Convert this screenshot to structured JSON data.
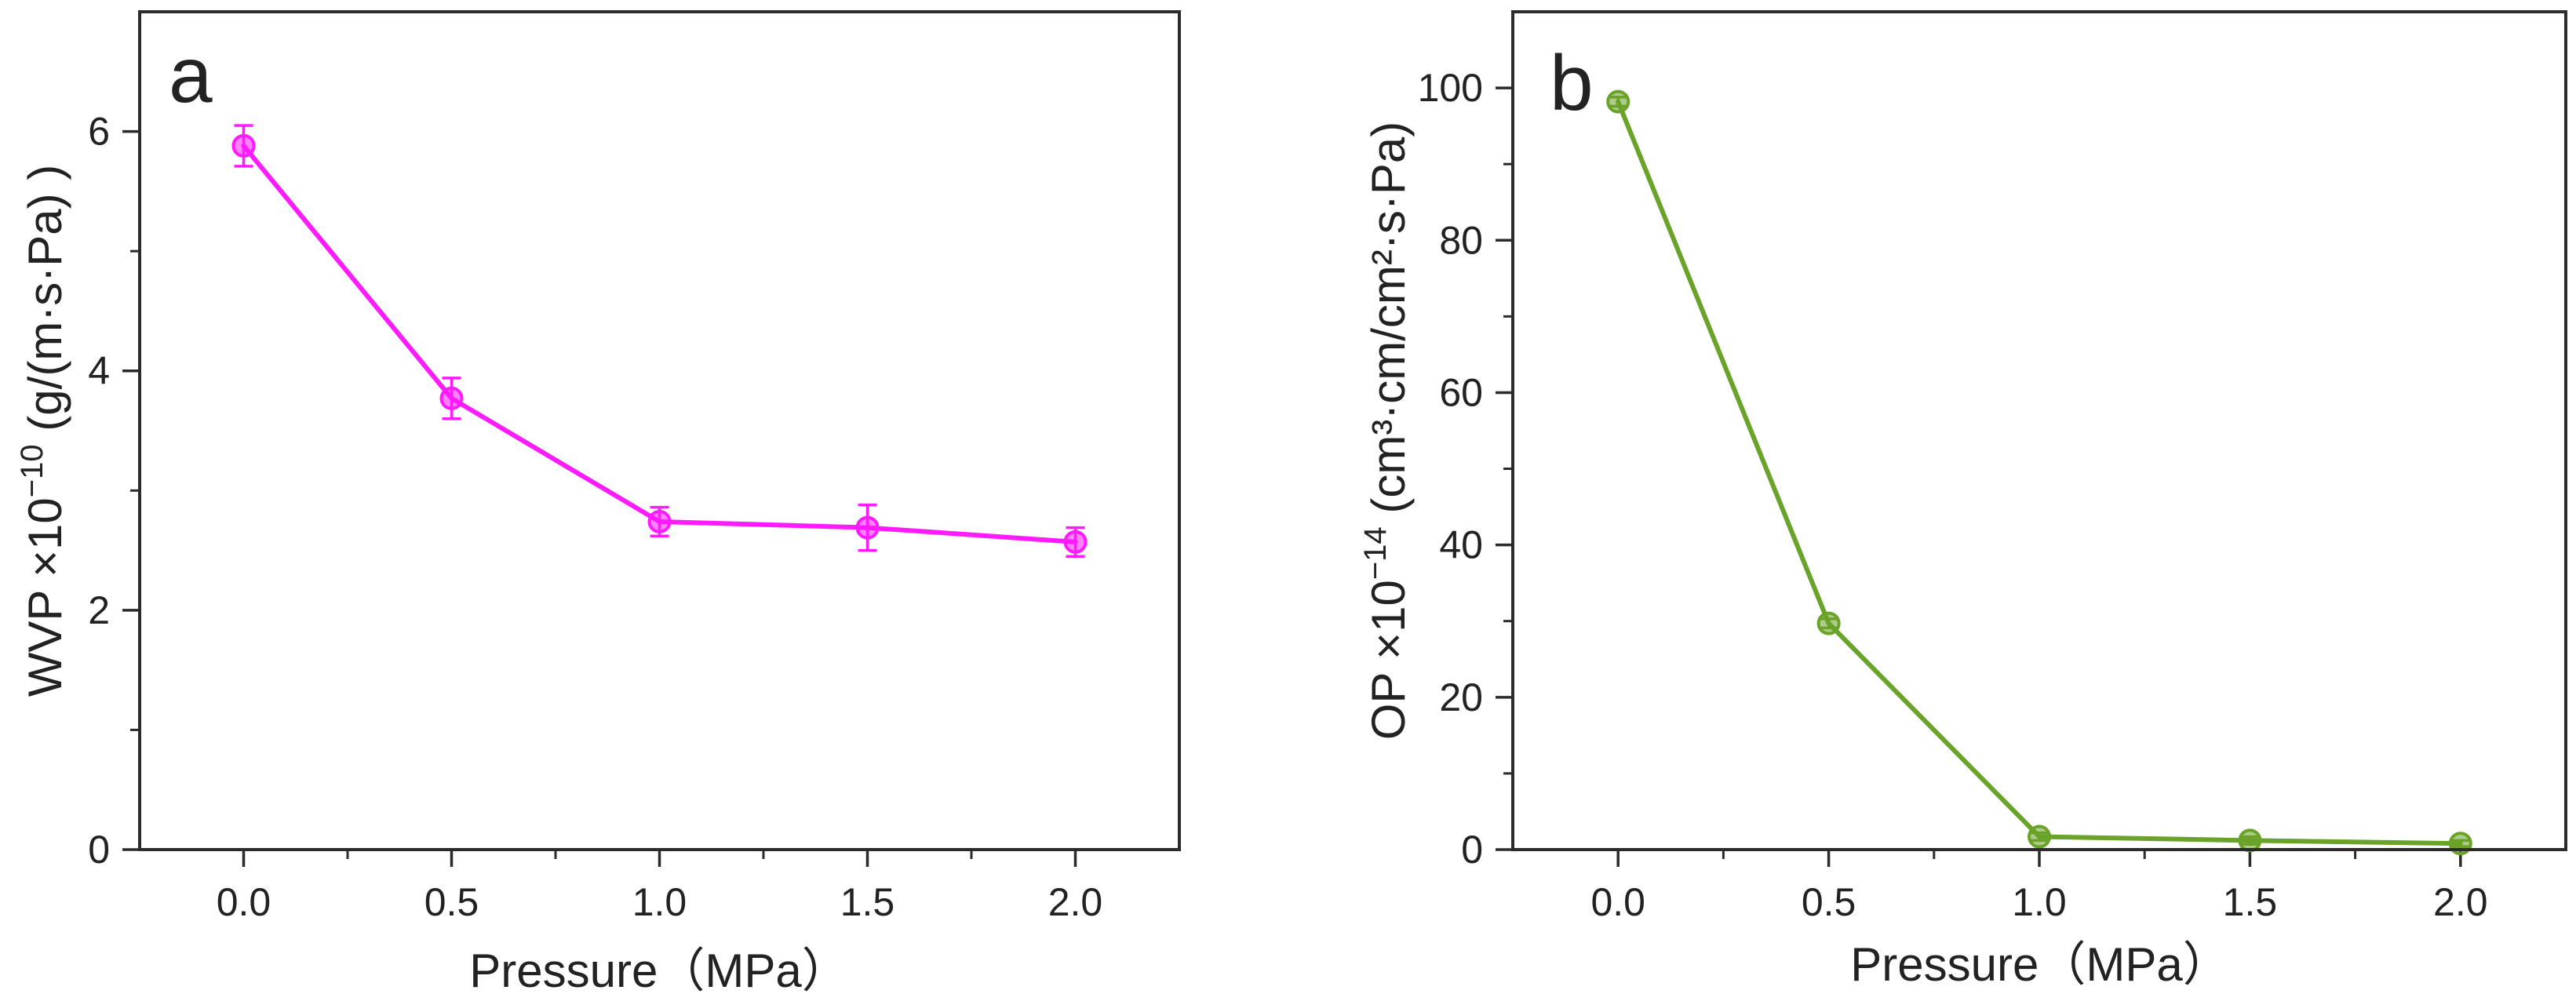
{
  "chart_data": [
    {
      "panel_label": "a",
      "type": "line",
      "xlabel": "Pressure（MPa）",
      "ylabel": "WVP ×10",
      "ylabel_exponent": "−10",
      "ylabel_units": " (g/(m·s·Pa) )",
      "x": [
        0.0,
        0.5,
        1.0,
        1.5,
        2.0
      ],
      "xlim": [
        -0.25,
        2.25
      ],
      "ylim": [
        0,
        7
      ],
      "xticks": [
        0.0,
        0.5,
        1.0,
        1.5,
        2.0
      ],
      "xtick_labels": [
        "0.0",
        "0.5",
        "1.0",
        "1.5",
        "2.0"
      ],
      "yticks": [
        0,
        2,
        4,
        6
      ],
      "ytick_labels": [
        "0",
        "2",
        "4",
        "6"
      ],
      "series": [
        {
          "name": "WVP",
          "values": [
            5.88,
            3.77,
            2.74,
            2.69,
            2.57
          ],
          "errors": [
            0.17,
            0.17,
            0.12,
            0.19,
            0.12
          ],
          "color": "#ff1aff"
        }
      ]
    },
    {
      "panel_label": "b",
      "type": "line",
      "xlabel": "Pressure（MPa）",
      "ylabel": "OP ×10",
      "ylabel_exponent": "−14",
      "ylabel_units": " (cm³·cm/cm²·s·Pa)",
      "x": [
        0.0,
        0.5,
        1.0,
        1.5,
        2.0
      ],
      "xlim": [
        -0.25,
        2.25
      ],
      "ylim": [
        0,
        110
      ],
      "xticks": [
        0.0,
        0.5,
        1.0,
        1.5,
        2.0
      ],
      "xtick_labels": [
        "0.0",
        "0.5",
        "1.0",
        "1.5",
        "2.0"
      ],
      "yticks": [
        0,
        20,
        40,
        60,
        80,
        100
      ],
      "ytick_labels": [
        "0",
        "20",
        "40",
        "60",
        "80",
        "100"
      ],
      "series": [
        {
          "name": "OP",
          "values": [
            98.2,
            29.7,
            1.7,
            1.2,
            0.8
          ],
          "errors": [
            0.6,
            0.6,
            0.5,
            0.5,
            0.4
          ],
          "color": "#6aa329"
        }
      ]
    }
  ]
}
